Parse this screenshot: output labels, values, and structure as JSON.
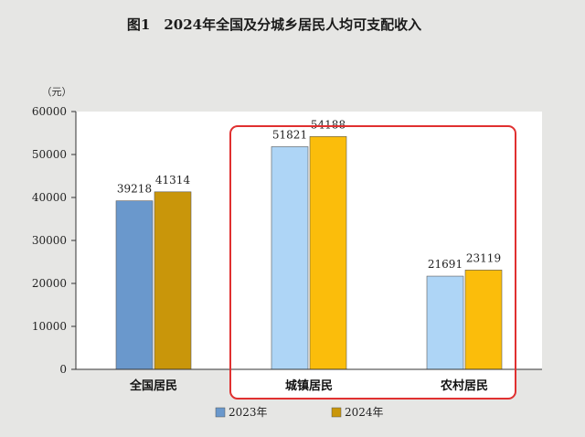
{
  "chart_data": {
    "type": "bar",
    "title": "图1　2024年全国及分城乡居民人均可支配收入",
    "unit_label": "（元）",
    "categories": [
      "全国居民",
      "城镇居民",
      "农村居民"
    ],
    "series": [
      {
        "name": "2023年",
        "values": [
          39218,
          51821,
          21691
        ],
        "color": "#6a98cc",
        "color_highlight": "#aed5f6"
      },
      {
        "name": "2024年",
        "values": [
          41314,
          54188,
          23119
        ],
        "color": "#c9960a",
        "color_highlight": "#fbbd0b"
      }
    ],
    "ylim": [
      0,
      60000
    ],
    "yticks": [
      "0",
      "10000",
      "20000",
      "30000",
      "40000",
      "50000",
      "60000"
    ],
    "grid": false,
    "legend_position": "bottom-center",
    "highlight_categories": [
      "城镇居民",
      "农村居民"
    ],
    "highlight_border_color": "#e03030"
  }
}
